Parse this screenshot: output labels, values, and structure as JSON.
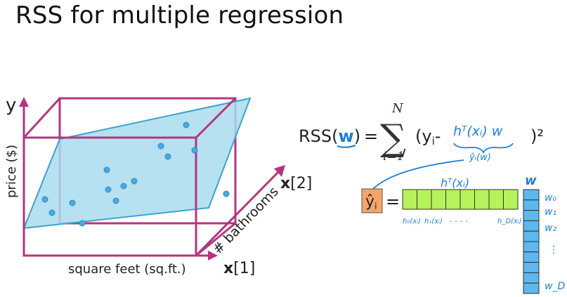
{
  "title": "RSS for multiple regression",
  "plot": {
    "y_axis_label": "y",
    "price_label": "price ($)",
    "sqft_label": "square feet (sq.ft.)",
    "x1_bold": "x",
    "x1_index": "[1]",
    "x2_bold": "x",
    "x2_index": "[2]",
    "bathrooms_label": "# bathrooms"
  },
  "formula": {
    "rss_prefix": "RSS(",
    "w": "w",
    "rss_suffix": ")",
    "equals": "=",
    "upper_limit": "N",
    "lower_limit": "i=1",
    "sum_symbol": "∑",
    "term_open": "(y",
    "term_sub": "i",
    "term_minus": "-",
    "handwritten_term": "hᵀ(xᵢ) w",
    "handwritten_under": "ŷᵢ(w)",
    "close_square": ")²"
  },
  "matrix": {
    "yhat": "ŷ",
    "yhat_sub": "i",
    "equals": "=",
    "h_label": "hᵀ(xᵢ)",
    "h_bottom_labels": [
      "h₀(xᵢ)",
      "h₁(xᵢ)",
      ". . . .",
      "h_D(xᵢ)"
    ],
    "w_label": "w",
    "w_side_labels": [
      "w₀",
      "w₁",
      "w₂",
      "⋮",
      "w_D"
    ],
    "h_cell_count": 8,
    "w_cell_count": 10
  },
  "colors": {
    "box": "#b5347f",
    "plane_fill": "#a9dcef",
    "plane_stroke": "#3aa3cc",
    "point": "#4ba9e0",
    "h_cells": "#b6f25a",
    "w_cells": "#5cb8ee",
    "yhat_bg": "#f6a56a",
    "handwriting": "#1e7fd6"
  }
}
